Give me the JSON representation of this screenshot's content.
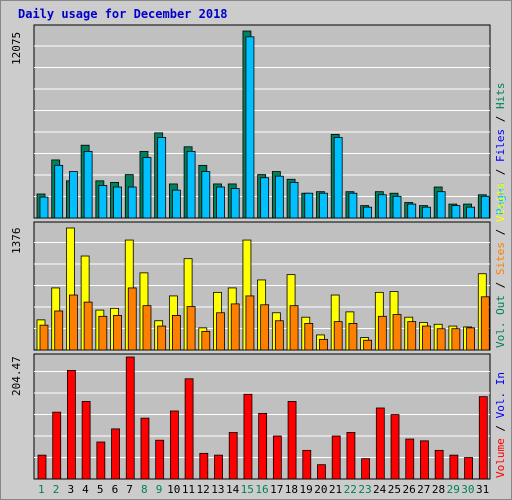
{
  "title": "Daily usage for December 2018",
  "colors": {
    "hits": "#00805c",
    "files": "#00c0ff",
    "pages": "#00e0ff",
    "visits": "#ffff00",
    "sites": "#ff8000",
    "kbytes": "#ff0000",
    "weekend_day": "#00805c",
    "weekday": "#000000",
    "panel_bg": "#c0c0c0",
    "grid": "#ffffff"
  },
  "chart_data": [
    {
      "type": "bar",
      "name": "hits-files-pages",
      "ymax_label": "12075",
      "ymax": 12075,
      "legend": [
        {
          "label": "Hits",
          "color": "#00805c"
        },
        {
          "label": "Files",
          "color": "#0000ff"
        },
        {
          "label": "Pages",
          "color": "#00c0ff"
        }
      ],
      "legend_separator": "/",
      "x": [
        "1",
        "2",
        "3",
        "4",
        "5",
        "6",
        "7",
        "8",
        "9",
        "10",
        "11",
        "12",
        "13",
        "14",
        "15",
        "16",
        "17",
        "18",
        "19",
        "20",
        "21",
        "22",
        "23",
        "24",
        "25",
        "26",
        "27",
        "28",
        "29",
        "30",
        "31"
      ],
      "series": [
        {
          "name": "Hits",
          "values": [
            1550,
            3750,
            2400,
            4700,
            2400,
            2300,
            2800,
            4300,
            5500,
            2200,
            4600,
            3400,
            2200,
            2200,
            12075,
            2800,
            3000,
            2500,
            1600,
            1700,
            5400,
            1700,
            800,
            1700,
            1600,
            1000,
            800,
            2000,
            900,
            900,
            1500
          ]
        },
        {
          "name": "Files",
          "values": [
            1350,
            3400,
            3000,
            4300,
            2100,
            2000,
            2000,
            3900,
            5200,
            1800,
            4300,
            3000,
            2000,
            1900,
            11700,
            2600,
            2700,
            2300,
            1600,
            1600,
            5200,
            1600,
            700,
            1500,
            1400,
            900,
            700,
            1700,
            800,
            700,
            1400
          ]
        }
      ]
    },
    {
      "type": "bar",
      "name": "visits-sites",
      "ymax_label": "1376",
      "ymax": 1376,
      "legend": [
        {
          "label": "Visits",
          "color": "#ffff00"
        },
        {
          "label": "Sites",
          "color": "#ff8000"
        }
      ],
      "legend_separator": "/",
      "x": [
        "1",
        "2",
        "3",
        "4",
        "5",
        "6",
        "7",
        "8",
        "9",
        "10",
        "11",
        "12",
        "13",
        "14",
        "15",
        "16",
        "17",
        "18",
        "19",
        "20",
        "21",
        "22",
        "23",
        "24",
        "25",
        "26",
        "27",
        "28",
        "29",
        "30",
        "31"
      ],
      "series": [
        {
          "name": "Visits",
          "values": [
            340,
            700,
            1376,
            1060,
            450,
            470,
            1240,
            870,
            330,
            610,
            1030,
            250,
            650,
            700,
            1240,
            790,
            420,
            850,
            370,
            170,
            620,
            430,
            140,
            650,
            660,
            370,
            310,
            290,
            270,
            260,
            860
          ]
        },
        {
          "name": "Sites",
          "values": [
            280,
            440,
            620,
            540,
            380,
            390,
            700,
            500,
            270,
            390,
            490,
            210,
            420,
            520,
            610,
            510,
            330,
            500,
            300,
            120,
            320,
            300,
            110,
            380,
            400,
            320,
            270,
            240,
            240,
            250,
            600
          ]
        }
      ]
    },
    {
      "type": "bar",
      "name": "volume",
      "ymax_label": "204.47",
      "ymax": 204.47,
      "legend_prefix_labels": [
        {
          "label": "Volume",
          "color": "#ff0000"
        },
        {
          "label": "Vol. In",
          "color": "#0000ff"
        },
        {
          "label": "Vol. Out",
          "color": "#00805c"
        }
      ],
      "legend_separator": "/",
      "x": [
        "1",
        "2",
        "3",
        "4",
        "5",
        "6",
        "7",
        "8",
        "9",
        "10",
        "11",
        "12",
        "13",
        "14",
        "15",
        "16",
        "17",
        "18",
        "19",
        "20",
        "21",
        "22",
        "23",
        "24",
        "25",
        "26",
        "27",
        "28",
        "29",
        "30",
        "31"
      ],
      "series": [
        {
          "name": "Volume",
          "values": [
            40,
            112,
            182,
            130,
            62,
            84,
            204.47,
            102,
            65,
            114,
            168,
            43,
            40,
            78,
            142,
            110,
            72,
            130,
            48,
            24,
            72,
            78,
            34,
            119,
            108,
            67,
            64,
            48,
            40,
            36,
            138
          ]
        }
      ]
    }
  ],
  "x_labels": [
    "1",
    "2",
    "3",
    "4",
    "5",
    "6",
    "7",
    "8",
    "9",
    "10",
    "11",
    "12",
    "13",
    "14",
    "15",
    "16",
    "17",
    "18",
    "19",
    "20",
    "21",
    "22",
    "23",
    "24",
    "25",
    "26",
    "27",
    "28",
    "29",
    "30",
    "31"
  ],
  "weekend_days": [
    1,
    2,
    8,
    9,
    15,
    16,
    22,
    23,
    29,
    30
  ]
}
